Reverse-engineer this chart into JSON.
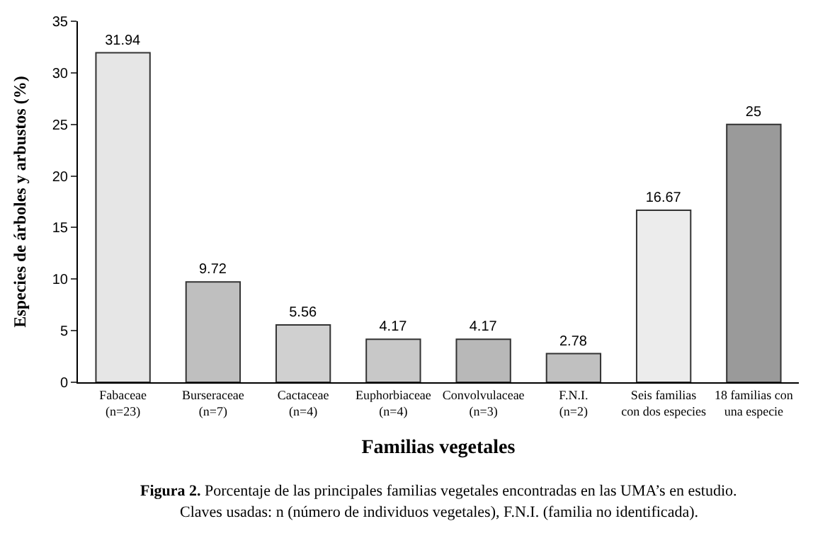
{
  "chart_data": {
    "type": "bar",
    "categories": [
      "Fabaceae\n(n=23)",
      "Burseraceae\n(n=7)",
      "Cactaceae\n(n=4)",
      "Euphorbiaceae\n(n=4)",
      "Convolvulaceae\n(n=3)",
      "F.N.I.\n(n=2)",
      "Seis familias\ncon dos especies",
      "18 familias con\nuna especie"
    ],
    "values": [
      31.94,
      9.72,
      5.56,
      4.17,
      4.17,
      2.78,
      16.67,
      25
    ],
    "colors": [
      "#e6e6e6",
      "#bfbfbf",
      "#d0d0d0",
      "#c8c8c8",
      "#b8b8b8",
      "#c0c0c0",
      "#ececec",
      "#9a9a9a"
    ],
    "xlabel": "Familias vegetales",
    "ylabel": "Especies de árboles y arbustos (%)",
    "ylim": [
      0,
      35
    ],
    "yticks": [
      0,
      5,
      10,
      15,
      20,
      25,
      30,
      35
    ],
    "data_labels": true,
    "annotations": [
      "Figura 2. Porcentaje de las principales familias vegetales encontradas en las UMA’s en estudio.",
      "Claves usadas: n (número de individuos vegetales), F.N.I. (familia no identificada)."
    ]
  }
}
